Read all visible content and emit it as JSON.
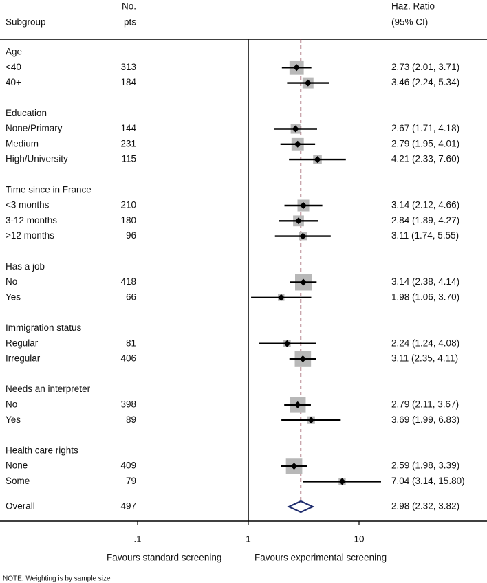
{
  "chart_data": {
    "type": "forest",
    "headers": {
      "subgroup": "Subgroup",
      "n_line1": "No.",
      "n_line2": "pts",
      "hr_line1": "Haz. Ratio",
      "hr_line2": "(95% CI)"
    },
    "x_scale": "log",
    "xlim": [
      0.04,
      50
    ],
    "x_ticks": [
      {
        "value": 0.1,
        "label": ".1"
      },
      {
        "value": 1,
        "label": "1"
      },
      {
        "value": 10,
        "label": "10"
      }
    ],
    "null_line": 1,
    "overall_line": 2.98,
    "xlabel_left": "Favours standard screening",
    "xlabel_right": "Favours experimental screening",
    "note": "NOTE: Weighting is by sample size",
    "groups": [
      {
        "title": "Age",
        "rows": [
          {
            "label": "<40",
            "n": "313",
            "hr": 2.73,
            "lo": 2.01,
            "hi": 3.71,
            "text": "2.73 (2.01, 3.71)"
          },
          {
            "label": "40+",
            "n": "184",
            "hr": 3.46,
            "lo": 2.24,
            "hi": 5.34,
            "text": "3.46 (2.24, 5.34)"
          }
        ]
      },
      {
        "title": "Education",
        "rows": [
          {
            "label": "None/Primary",
            "n": "144",
            "hr": 2.67,
            "lo": 1.71,
            "hi": 4.18,
            "text": "2.67 (1.71, 4.18)"
          },
          {
            "label": "Medium",
            "n": "231",
            "hr": 2.79,
            "lo": 1.95,
            "hi": 4.01,
            "text": "2.79 (1.95, 4.01)"
          },
          {
            "label": "High/University",
            "n": "115",
            "hr": 4.21,
            "lo": 2.33,
            "hi": 7.6,
            "text": "4.21 (2.33, 7.60)"
          }
        ]
      },
      {
        "title": "Time since in France",
        "rows": [
          {
            "label": "<3 months",
            "n": "210",
            "hr": 3.14,
            "lo": 2.12,
            "hi": 4.66,
            "text": "3.14 (2.12, 4.66)"
          },
          {
            "label": "3-12 months",
            "n": "180",
            "hr": 2.84,
            "lo": 1.89,
            "hi": 4.27,
            "text": "2.84 (1.89, 4.27)"
          },
          {
            "label": ">12 months",
            "n": "96",
            "hr": 3.11,
            "lo": 1.74,
            "hi": 5.55,
            "text": "3.11 (1.74, 5.55)"
          }
        ]
      },
      {
        "title": "Has a job",
        "rows": [
          {
            "label": "No",
            "n": "418",
            "hr": 3.14,
            "lo": 2.38,
            "hi": 4.14,
            "text": "3.14 (2.38, 4.14)"
          },
          {
            "label": "Yes",
            "n": "66",
            "hr": 1.98,
            "lo": 1.06,
            "hi": 3.7,
            "text": "1.98 (1.06, 3.70)"
          }
        ]
      },
      {
        "title": "Immigration status",
        "rows": [
          {
            "label": "Regular",
            "n": "81",
            "hr": 2.24,
            "lo": 1.24,
            "hi": 4.08,
            "text": "2.24 (1.24, 4.08)"
          },
          {
            "label": "Irregular",
            "n": "406",
            "hr": 3.11,
            "lo": 2.35,
            "hi": 4.11,
            "text": "3.11 (2.35, 4.11)"
          }
        ]
      },
      {
        "title": "Needs an interpreter",
        "rows": [
          {
            "label": "No",
            "n": "398",
            "hr": 2.79,
            "lo": 2.11,
            "hi": 3.67,
            "text": "2.79 (2.11, 3.67)"
          },
          {
            "label": "Yes",
            "n": "89",
            "hr": 3.69,
            "lo": 1.99,
            "hi": 6.83,
            "text": "3.69 (1.99, 6.83)"
          }
        ]
      },
      {
        "title": "Health care rights",
        "rows": [
          {
            "label": "None",
            "n": "409",
            "hr": 2.59,
            "lo": 1.98,
            "hi": 3.39,
            "text": "2.59 (1.98, 3.39)"
          },
          {
            "label": "Some",
            "n": "79",
            "hr": 7.04,
            "lo": 3.14,
            "hi": 15.8,
            "text": "7.04 (3.14, 15.80)"
          }
        ]
      }
    ],
    "overall": {
      "label": "Overall",
      "n": "497",
      "hr": 2.98,
      "lo": 2.32,
      "hi": 3.82,
      "text": "2.98 (2.32, 3.82)"
    },
    "colors": {
      "box": "#b8b8b8",
      "line": "#000000",
      "ref_line": "#8b3a4a",
      "overall_diamond": "#1f2d6e"
    }
  }
}
